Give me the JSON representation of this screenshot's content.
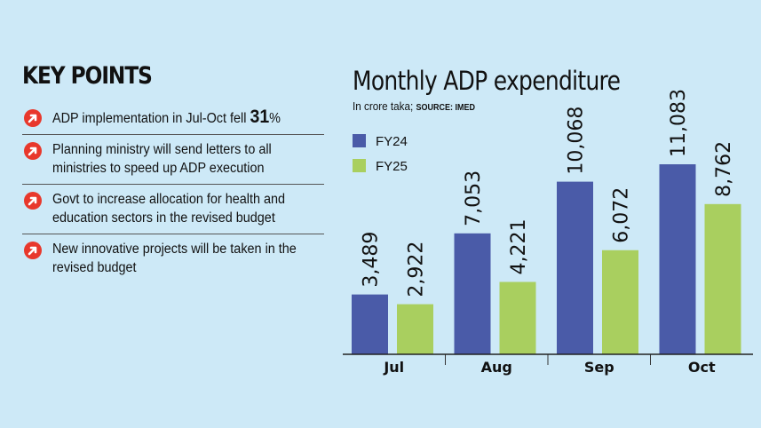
{
  "key_points": {
    "title": "KEY POINTS",
    "items": [
      {
        "text": "ADP implementation in Jul-Oct fell ",
        "strong": "31",
        "suffix": "%"
      },
      {
        "text": "Planning ministry will send letters to all ministries to speed up ADP execution"
      },
      {
        "text": "Govt to increase allocation for health and education sectors in the revised budget"
      },
      {
        "text": "New innovative projects will be taken in the revised budget"
      }
    ],
    "icon": "red-circle-arrow-icon",
    "icon_color": "#e8382c"
  },
  "chart_data": {
    "type": "bar",
    "title": "Monthly ADP expenditure",
    "subtitle": "In crore taka; ",
    "source": "SOURCE: IMED",
    "categories": [
      "Jul",
      "Aug",
      "Sep",
      "Oct"
    ],
    "series": [
      {
        "name": "FY24",
        "values": [
          3489,
          7053,
          10068,
          11083
        ],
        "labels": [
          "3,489",
          "7,053",
          "10,068",
          "11,083"
        ],
        "color": "#4a5ba8"
      },
      {
        "name": "FY25",
        "values": [
          2922,
          4221,
          6072,
          8762
        ],
        "labels": [
          "2,922",
          "4,221",
          "6,072",
          "8,762"
        ],
        "color": "#a9cf5f"
      }
    ],
    "ylim": [
      0,
      11083
    ],
    "grid": false,
    "legend": "top-left"
  }
}
